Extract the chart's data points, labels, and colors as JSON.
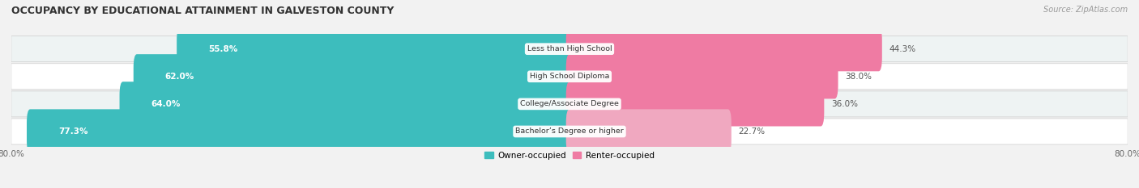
{
  "title": "OCCUPANCY BY EDUCATIONAL ATTAINMENT IN GALVESTON COUNTY",
  "source": "Source: ZipAtlas.com",
  "categories": [
    "Less than High School",
    "High School Diploma",
    "College/Associate Degree",
    "Bachelor’s Degree or higher"
  ],
  "owner_values": [
    55.8,
    62.0,
    64.0,
    77.3
  ],
  "renter_values": [
    44.3,
    38.0,
    36.0,
    22.7
  ],
  "owner_color": "#3DBDBD",
  "renter_colors": [
    "#EF7BA3",
    "#EF7BA3",
    "#EF7BA3",
    "#F0A8C0"
  ],
  "row_bg_light": "#EEF3F3",
  "row_bg_dark": "#FFFFFF",
  "label_bg": "#FFFFFF",
  "value_color_owner": "#FFFFFF",
  "value_color_renter": "#555555",
  "xlim_left": -80.0,
  "xlim_right": 80.0,
  "legend_owner": "Owner-occupied",
  "legend_renter": "Renter-occupied",
  "bar_height": 0.62,
  "figsize": [
    14.06,
    2.33
  ],
  "bg_color": "#F2F2F2"
}
